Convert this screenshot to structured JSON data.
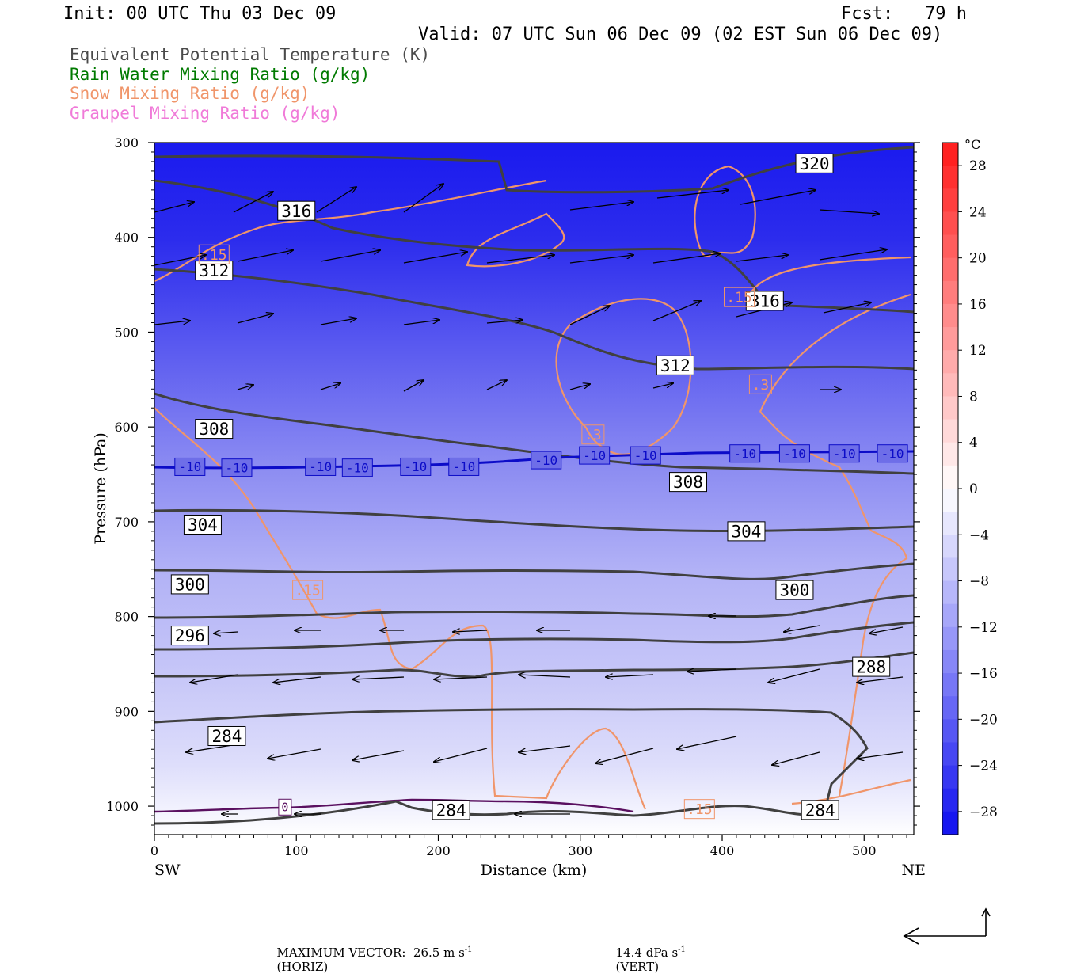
{
  "header": {
    "init": "Init: 00 UTC Thu 03 Dec 09",
    "fcst": "Fcst:   79 h",
    "valid": "Valid: 07 UTC Sun 06 Dec 09 (02 EST Sun 06 Dec 09)"
  },
  "legend": [
    {
      "text": "Equivalent Potential Temperature (K)",
      "color": "#4a4a4a"
    },
    {
      "text": "Rain Water Mixing Ratio (g/kg)",
      "color": "#007a00"
    },
    {
      "text": "Snow Mixing Ratio (g/kg)",
      "color": "#f0956a"
    },
    {
      "text": "Graupel Mixing Ratio (g/kg)",
      "color": "#f07ad8"
    }
  ],
  "chart_data": {
    "type": "cross-section",
    "ylabel": "Pressure (hPa)",
    "xlabel": "Distance (km)",
    "x_ticks": [
      0,
      100,
      200,
      300,
      400,
      500
    ],
    "y_ticks": [
      300,
      400,
      500,
      600,
      700,
      800,
      900,
      1000
    ],
    "xlim": [
      0,
      535
    ],
    "ylim": [
      1030,
      300
    ],
    "endpoints": {
      "left": "SW",
      "right": "NE"
    },
    "colorbar": {
      "unit": "°C",
      "ticks": [
        28,
        24,
        20,
        16,
        12,
        8,
        4,
        0,
        -4,
        -8,
        -12,
        -16,
        -20,
        -24,
        -28
      ]
    },
    "theta_e_labels": [
      {
        "text": "320",
        "x": 465,
        "p": 322
      },
      {
        "text": "316",
        "x": 100,
        "p": 372
      },
      {
        "text": "316",
        "x": 430,
        "p": 467
      },
      {
        "text": "312",
        "x": 42,
        "p": 435
      },
      {
        "text": "312",
        "x": 367,
        "p": 535
      },
      {
        "text": "308",
        "x": 42,
        "p": 602
      },
      {
        "text": "308",
        "x": 376,
        "p": 658
      },
      {
        "text": "304",
        "x": 34,
        "p": 703
      },
      {
        "text": "304",
        "x": 417,
        "p": 710
      },
      {
        "text": "300",
        "x": 25,
        "p": 766
      },
      {
        "text": "300",
        "x": 451,
        "p": 772
      },
      {
        "text": "296",
        "x": 25,
        "p": 820
      },
      {
        "text": "288",
        "x": 505,
        "p": 853
      },
      {
        "text": "284",
        "x": 51,
        "p": 926
      },
      {
        "text": "284",
        "x": 209,
        "p": 1004
      },
      {
        "text": "284",
        "x": 469,
        "p": 1004
      }
    ],
    "isotherm_labels": [
      {
        "text": "-10",
        "x": 25,
        "p": 642
      },
      {
        "text": "-10",
        "x": 58,
        "p": 643
      },
      {
        "text": "-10",
        "x": 117,
        "p": 642
      },
      {
        "text": "-10",
        "x": 143,
        "p": 643
      },
      {
        "text": "-10",
        "x": 184,
        "p": 642
      },
      {
        "text": "-10",
        "x": 218,
        "p": 642
      },
      {
        "text": "-10",
        "x": 276,
        "p": 635
      },
      {
        "text": "-10",
        "x": 310,
        "p": 630
      },
      {
        "text": "-10",
        "x": 346,
        "p": 630
      },
      {
        "text": "-10",
        "x": 416,
        "p": 628
      },
      {
        "text": "-10",
        "x": 451,
        "p": 628
      },
      {
        "text": "-10",
        "x": 486,
        "p": 628
      },
      {
        "text": "-10",
        "x": 520,
        "p": 628
      }
    ],
    "snow_labels": [
      {
        "text": ".15",
        "x": 42,
        "p": 418
      },
      {
        "text": ".15",
        "x": 108,
        "p": 772
      },
      {
        "text": ".15",
        "x": 384,
        "p": 1003
      },
      {
        "text": ".15",
        "x": 412,
        "p": 463
      },
      {
        "text": ".3",
        "x": 309,
        "p": 608
      },
      {
        "text": ".3",
        "x": 427,
        "p": 555
      }
    ],
    "rain_labels": [
      {
        "text": "0",
        "x": 92,
        "p": 1001
      }
    ]
  },
  "footer": {
    "max_vector": "MAXIMUM VECTOR:  26.5 m s",
    "horiz": "(HORIZ)",
    "vert_value": "14.4 dPa s",
    "vert": "(VERT)",
    "exp": "-1"
  }
}
